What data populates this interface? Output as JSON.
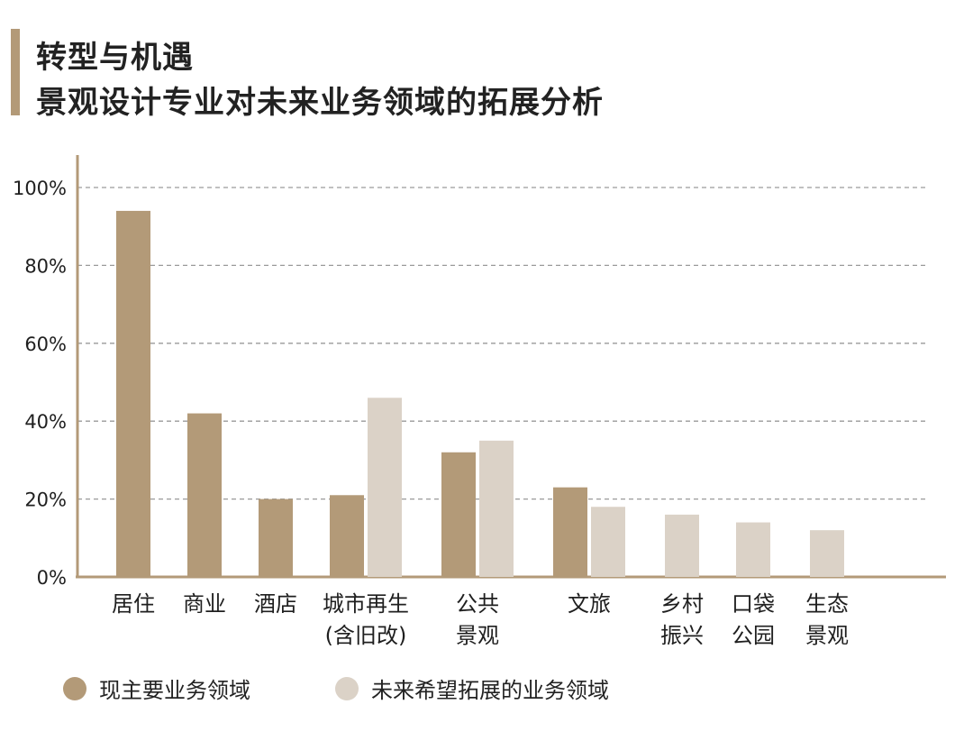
{
  "header": {
    "title_line1": "转型与机遇",
    "title_line2": "景观设计专业对未来业务领域的拓展分析"
  },
  "chart_data": {
    "type": "bar",
    "categories": [
      [
        "居住"
      ],
      [
        "商业"
      ],
      [
        "酒店"
      ],
      [
        "城市再生",
        "(含旧改)"
      ],
      [
        "公共",
        "景观"
      ],
      [
        "文旅"
      ],
      [
        "乡村",
        "振兴"
      ],
      [
        "口袋",
        "公园"
      ],
      [
        "生态",
        "景观"
      ]
    ],
    "series": [
      {
        "name": "现主要业务领域",
        "color": "#b39a78",
        "values": [
          94,
          42,
          20,
          21,
          32,
          23,
          null,
          null,
          null
        ]
      },
      {
        "name": "未来希望拓展的业务领域",
        "color": "#dbd2c7",
        "values": [
          null,
          null,
          null,
          46,
          35,
          18,
          16,
          14,
          12
        ]
      }
    ],
    "yticks": [
      "0%",
      "20%",
      "40%",
      "60%",
      "80%",
      "100%"
    ],
    "ylim": [
      0,
      100
    ],
    "grid": true,
    "legend": "bottom",
    "axis_color": "#b39a78",
    "grid_color": "#9a9a9a"
  }
}
